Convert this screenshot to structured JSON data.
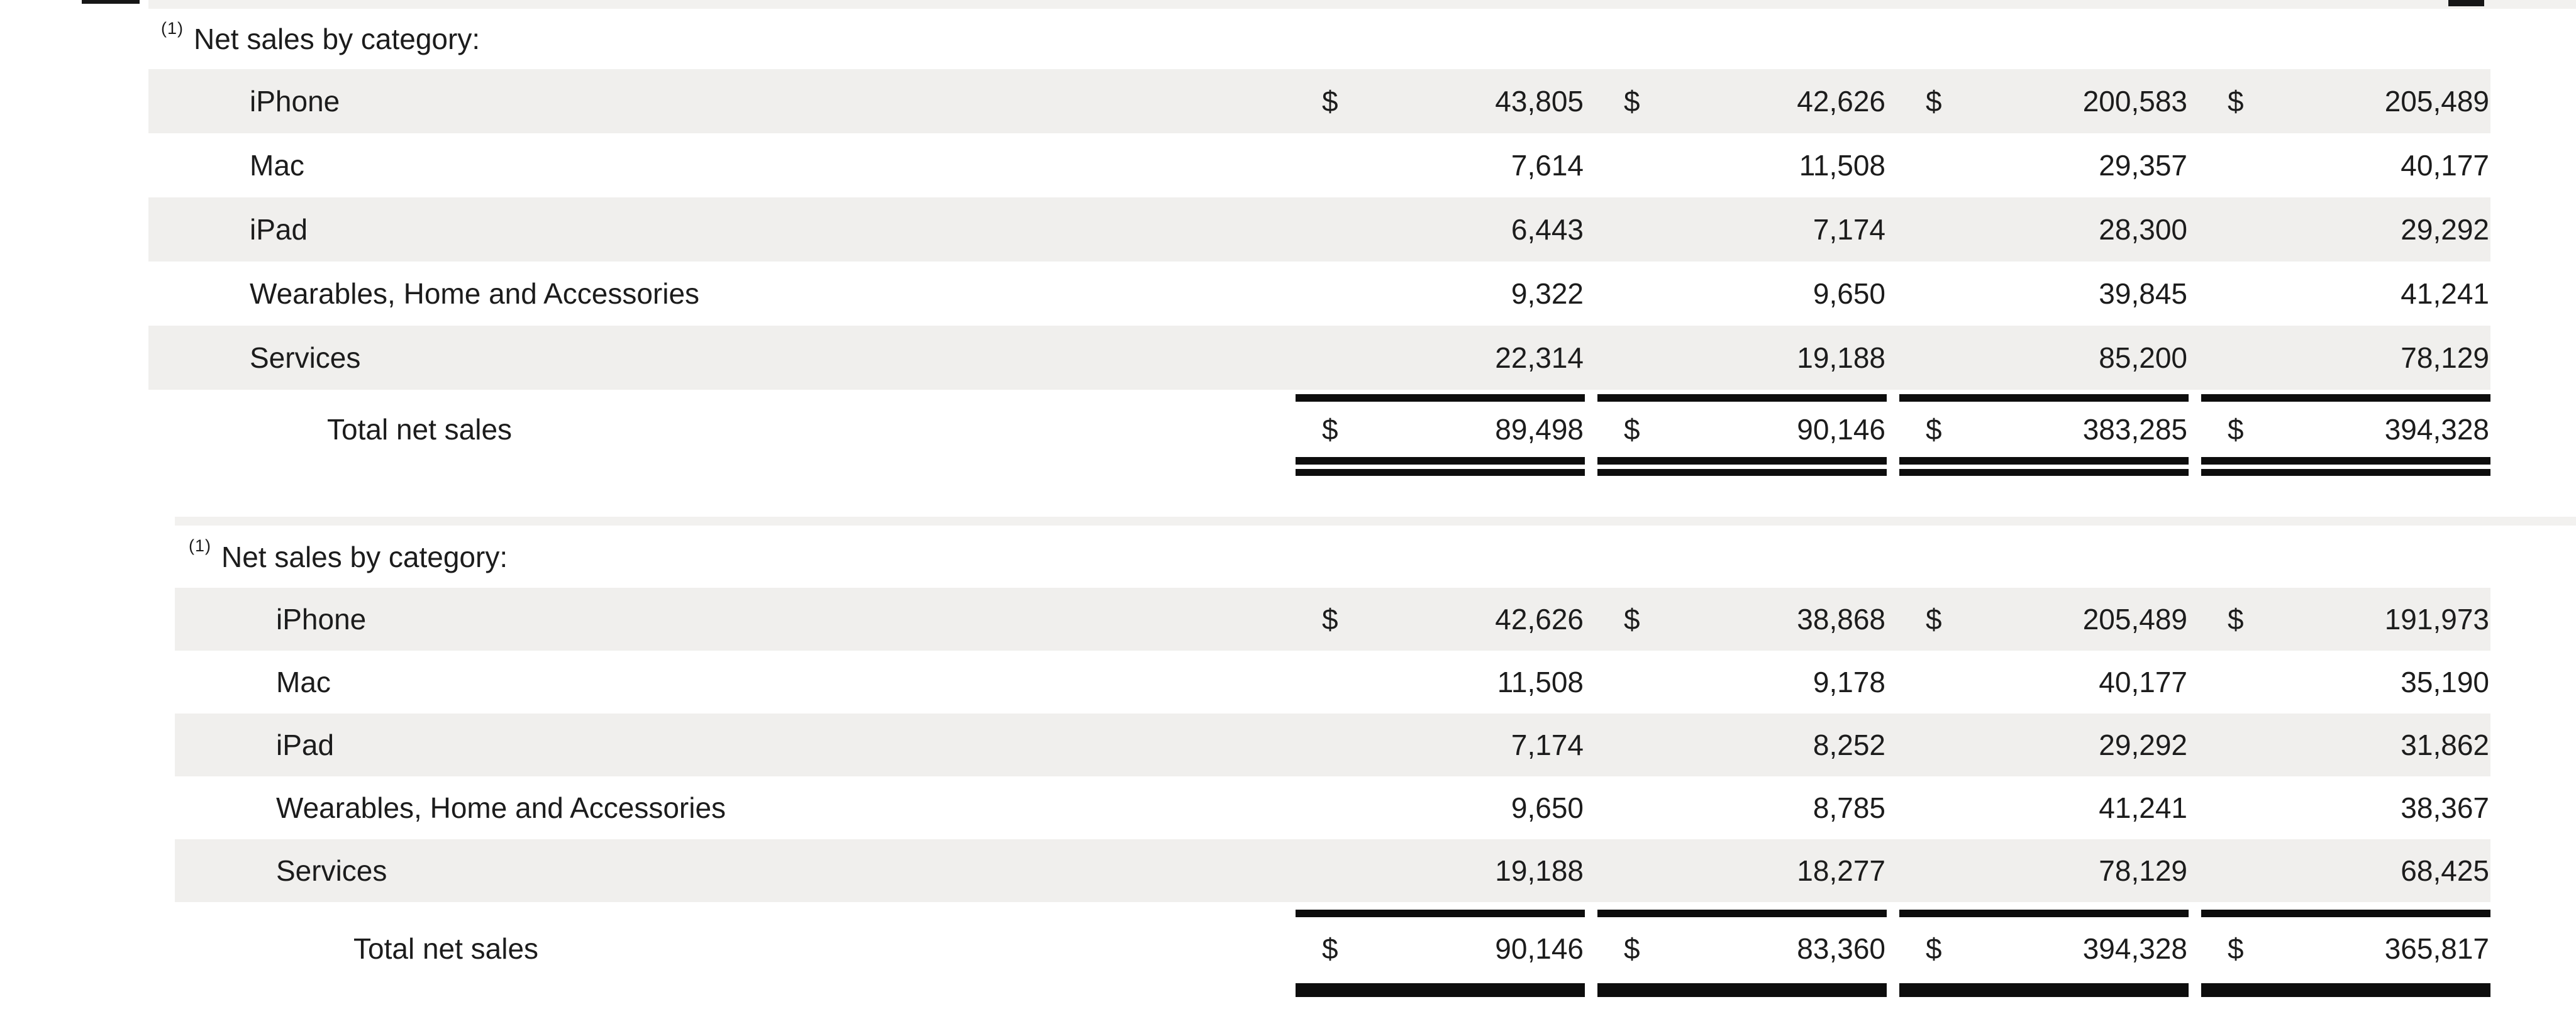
{
  "currency": "$",
  "tables": [
    {
      "footnote": "(1)",
      "title": "Net sales by category:",
      "rows": [
        {
          "label": "iPhone",
          "values": [
            "43,805",
            "42,626",
            "200,583",
            "205,489"
          ]
        },
        {
          "label": "Mac",
          "values": [
            "7,614",
            "11,508",
            "29,357",
            "40,177"
          ]
        },
        {
          "label": "iPad",
          "values": [
            "6,443",
            "7,174",
            "28,300",
            "29,292"
          ]
        },
        {
          "label": "Wearables, Home and Accessories",
          "values": [
            "9,322",
            "9,650",
            "39,845",
            "41,241"
          ]
        },
        {
          "label": "Services",
          "values": [
            "22,314",
            "19,188",
            "85,200",
            "78,129"
          ]
        }
      ],
      "total": {
        "label": "Total net sales",
        "values": [
          "89,498",
          "90,146",
          "383,285",
          "394,328"
        ]
      }
    },
    {
      "footnote": "(1)",
      "title": "Net sales by category:",
      "rows": [
        {
          "label": "iPhone",
          "values": [
            "42,626",
            "38,868",
            "205,489",
            "191,973"
          ]
        },
        {
          "label": "Mac",
          "values": [
            "11,508",
            "9,178",
            "40,177",
            "35,190"
          ]
        },
        {
          "label": "iPad",
          "values": [
            "7,174",
            "8,252",
            "29,292",
            "31,862"
          ]
        },
        {
          "label": "Wearables, Home and Accessories",
          "values": [
            "9,650",
            "8,785",
            "41,241",
            "38,367"
          ]
        },
        {
          "label": "Services",
          "values": [
            "19,188",
            "18,277",
            "78,129",
            "68,425"
          ]
        }
      ],
      "total": {
        "label": "Total net sales",
        "values": [
          "90,146",
          "83,360",
          "394,328",
          "365,817"
        ]
      }
    }
  ]
}
